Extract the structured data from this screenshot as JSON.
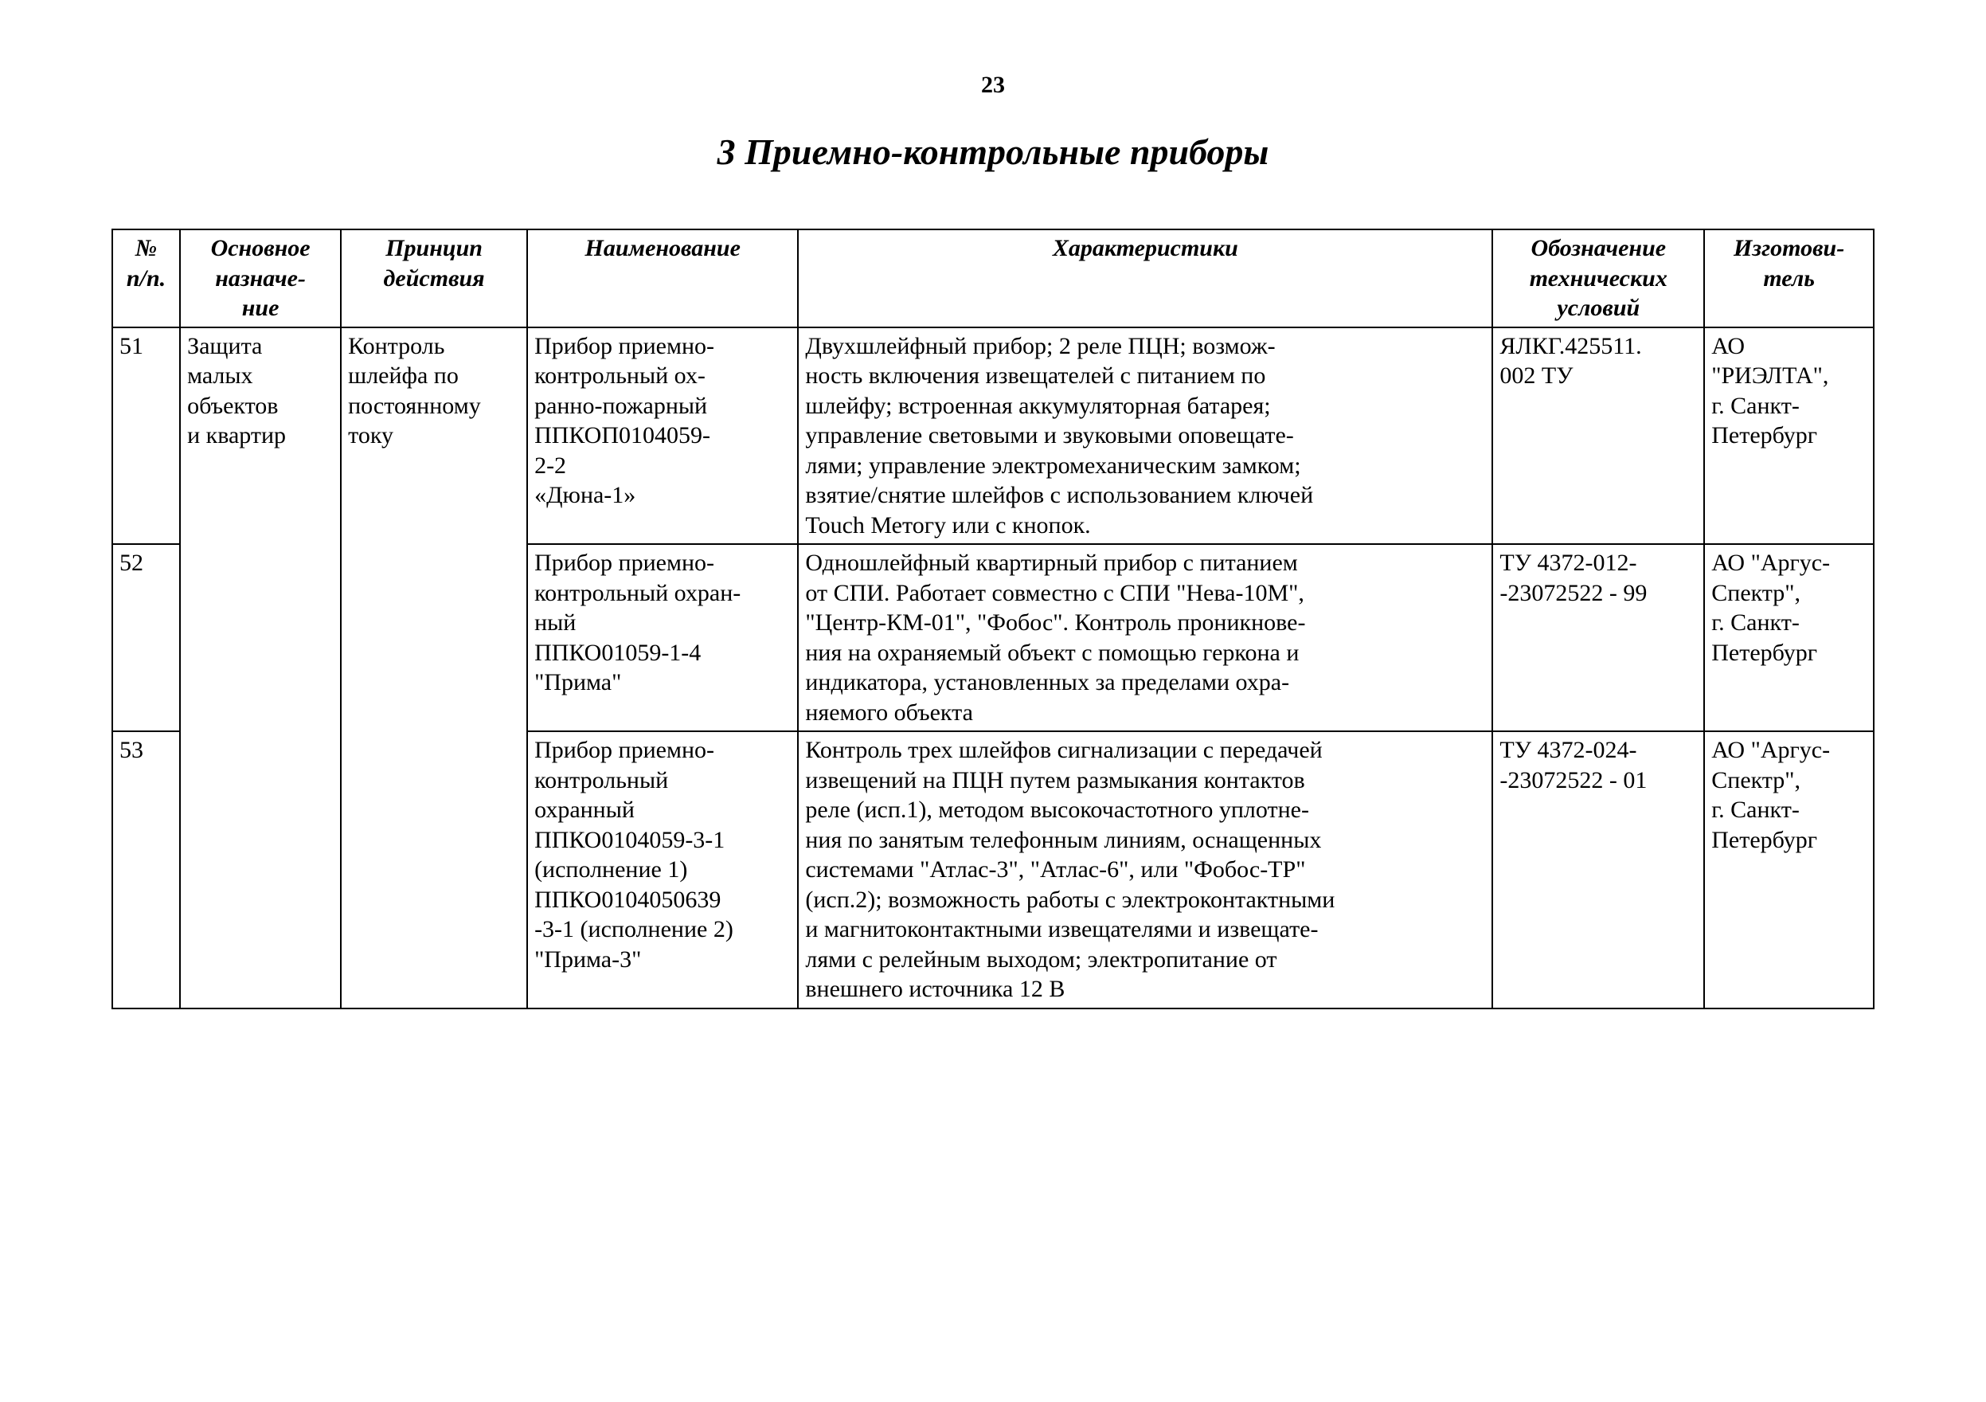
{
  "page_number": "23",
  "section_title": "3 Приемно-контрольные приборы",
  "headers": {
    "num": "№\nп/п.",
    "purpose": "Основное\nназначе-\nние",
    "principle": "Принцип\nдействия",
    "name": "Наименование",
    "chars": "Характеристики",
    "designation": "Обозначение\nтехнических\nусловий",
    "maker": "Изготови-\nтель"
  },
  "merged": {
    "purpose": "Защита\nмалых\nобъектов\nи квартир",
    "principle": "Контроль\nшлейфа по\nпостоянному\nтоку"
  },
  "rows": [
    {
      "num": "51",
      "name": "Прибор приемно-\nконтрольный ох-\nранно-пожарный\nППКОП0104059-\n2-2\n«Дюна-1»",
      "chars": "Двухшлейфный прибор; 2 реле ПЦН; возмож-\nность включения извещателей с питанием по\nшлейфу; встроенная аккумуляторная батарея;\nуправление световыми и звуковыми оповещате-\nлями; управление электромеханическим замком;\nвзятие/снятие шлейфов с использованием ключей\nTouch Метогу или с кнопок.",
      "designation": "ЯЛКГ.425511.\n002 ТУ",
      "maker": "АО\n\"РИЭЛТА\",\nг. Санкт-\nПетербург"
    },
    {
      "num": "52",
      "name": "Прибор приемно-\nконтрольный охран-\nный\nППКО01059-1-4\n\"Прима\"",
      "chars": "Одношлейфный квартирный прибор с питанием\nот СПИ. Работает совместно с СПИ \"Нева-10М\",\n\"Центр-КМ-01\", \"Фобос\". Контроль проникнове-\nния на охраняемый объект с помощью геркона и\nиндикатора, установленных за пределами охра-\nняемого объекта",
      "designation": "ТУ 4372-012-\n-23072522 - 99",
      "maker": "АО \"Аргус-\nСпектр\",\nг. Санкт-\nПетербург"
    },
    {
      "num": "53",
      "name": "Прибор приемно-\nконтрольный\nохранный\nППКО0104059-3-1\n(исполнение 1)\nППКО0104050639\n-3-1 (исполнение 2)\n\"Прима-3\"",
      "chars": "Контроль трех шлейфов сигнализации с передачей\nизвещений на ПЦН путем размыкания контактов\nреле (исп.1), методом высокочастотного уплотне-\nния по занятым телефонным линиям, оснащенных\nсистемами \"Атлас-3\", \"Атлас-6\", или \"Фобос-ТР\"\n(исп.2); возможность работы с электроконтактными\nи магнитоконтактными извещателями и извещате-\nлями с релейным выходом; электропитание от\nвнешнего источника 12 В",
      "designation": "ТУ 4372-024-\n-23072522 - 01",
      "maker": "АО \"Аргус-\nСпектр\",\nг. Санкт-\nПетербург"
    }
  ]
}
